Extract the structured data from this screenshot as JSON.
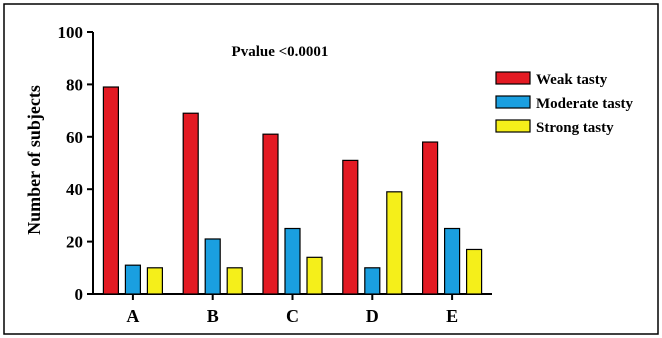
{
  "chart_data": {
    "type": "bar",
    "title": "",
    "annotation": "Pvalue <0.0001",
    "xlabel": "",
    "ylabel": "Number of subjects",
    "ylim": [
      0,
      100
    ],
    "yticks": [
      0,
      20,
      40,
      60,
      80,
      100
    ],
    "categories": [
      "A",
      "B",
      "C",
      "D",
      "E"
    ],
    "series": [
      {
        "name": "Weak tasty",
        "color": "#e31a23",
        "values": [
          79,
          69,
          61,
          51,
          58
        ]
      },
      {
        "name": "Moderate tasty",
        "color": "#1a9fe0",
        "values": [
          11,
          21,
          25,
          10,
          25
        ]
      },
      {
        "name": "Strong tasty",
        "color": "#f5ef1a",
        "values": [
          10,
          10,
          14,
          39,
          17
        ]
      }
    ],
    "legend_position": "right",
    "grid": false
  }
}
